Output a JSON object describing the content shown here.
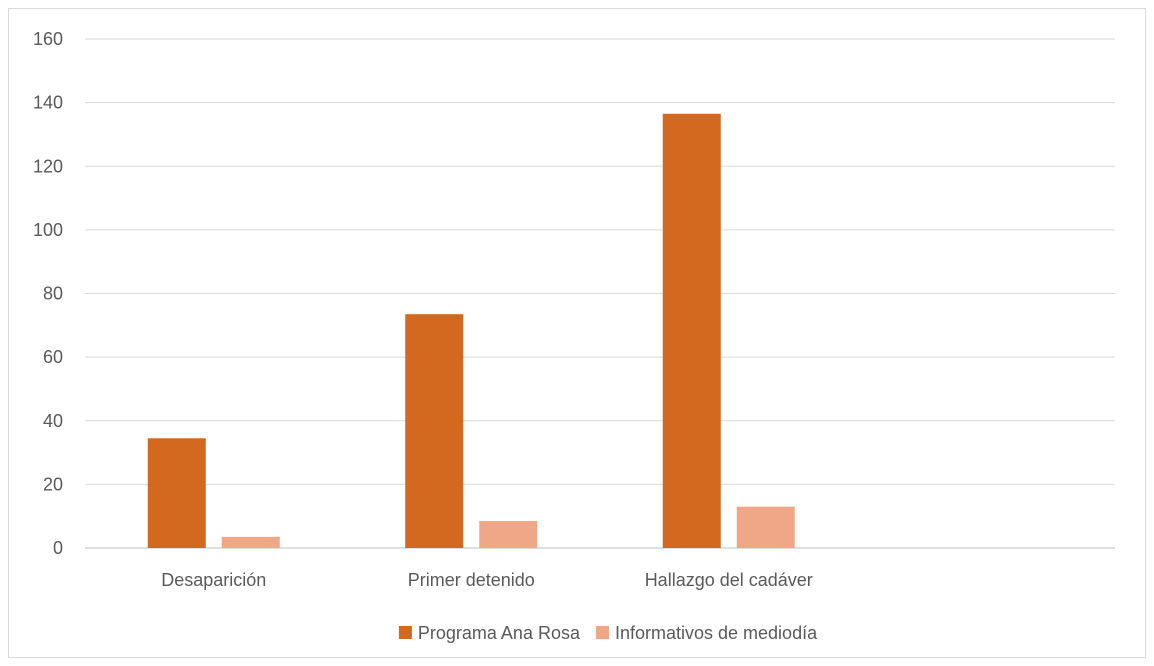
{
  "chart_data": {
    "type": "bar",
    "title": "",
    "xlabel": "",
    "ylabel": "",
    "ylim": [
      0,
      160
    ],
    "yticks": [
      0,
      20,
      40,
      60,
      80,
      100,
      120,
      140,
      160
    ],
    "grid": true,
    "legend_position": "bottom",
    "categories": [
      "Desaparición",
      "Primer detenido",
      "Hallazgo del cadáver",
      ""
    ],
    "series": [
      {
        "name": "Programa Ana Rosa",
        "color": "#d2691e",
        "values": [
          34.5,
          73.5,
          136.5,
          null
        ]
      },
      {
        "name": "Informativos de mediodía",
        "color": "#f0a788",
        "values": [
          3.5,
          8.5,
          13.0,
          null
        ]
      }
    ]
  }
}
